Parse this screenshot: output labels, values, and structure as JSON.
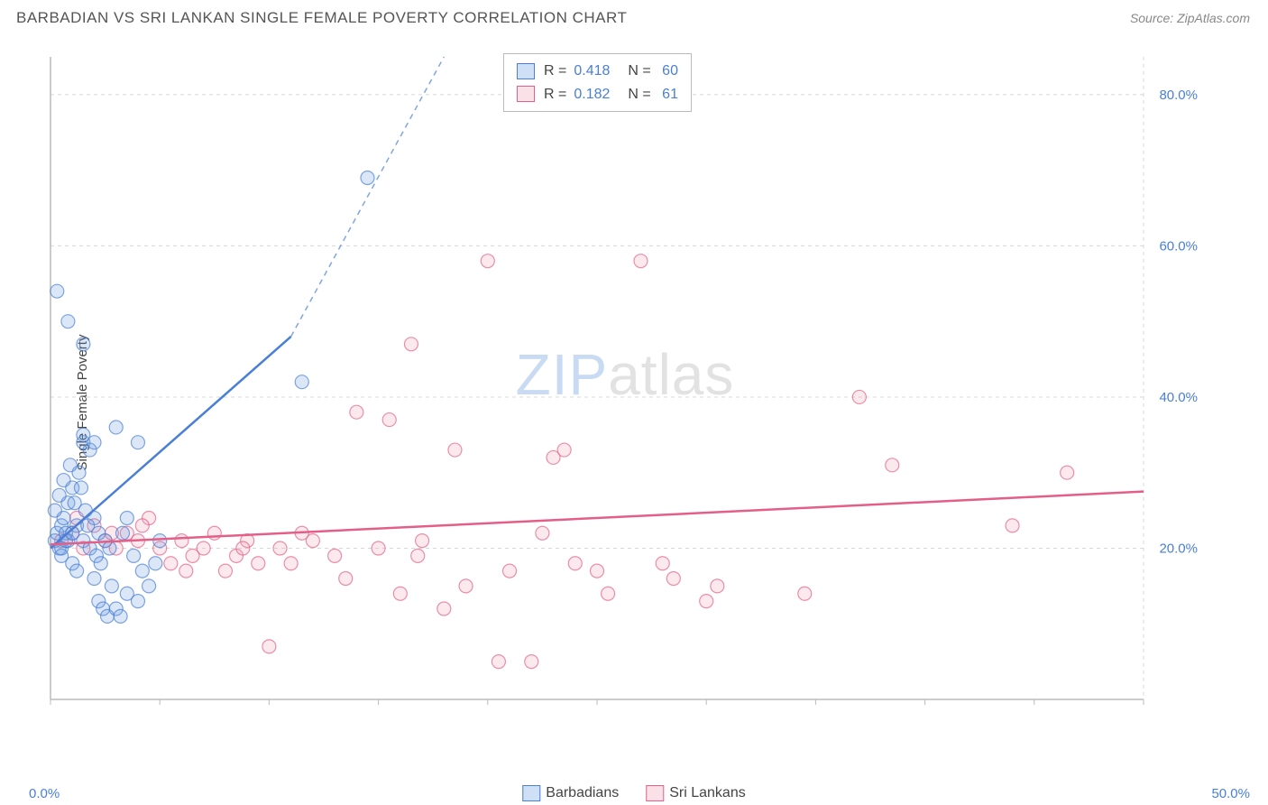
{
  "title": "BARBADIAN VS SRI LANKAN SINGLE FEMALE POVERTY CORRELATION CHART",
  "source": "Source: ZipAtlas.com",
  "ylabel": "Single Female Poverty",
  "watermark_part1": "ZIP",
  "watermark_part2": "atlas",
  "chart": {
    "type": "scatter",
    "background_color": "#ffffff",
    "grid_color": "#d8d8d8",
    "axis_color": "#bbbbbb",
    "tick_label_color": "#4a7fd6",
    "xlim": [
      0,
      50
    ],
    "ylim": [
      0,
      85
    ],
    "x_tick_positions": [
      0,
      5,
      10,
      15,
      20,
      25,
      30,
      35,
      40,
      45,
      50
    ],
    "y_gridlines": [
      20,
      40,
      60,
      80
    ],
    "x_axis_start_label": "0.0%",
    "x_axis_end_label": "50.0%",
    "y_tick_labels": [
      "20.0%",
      "40.0%",
      "60.0%",
      "80.0%"
    ],
    "marker_radius": 7.5,
    "marker_fill_opacity": 0.25,
    "marker_stroke_width": 1.2
  },
  "series": {
    "barbadians": {
      "label": "Barbadians",
      "color": "#6e9ee0",
      "stroke": "#4a7fd6",
      "r_value": "0.418",
      "n_value": "60",
      "trend_line": {
        "x1": 0,
        "y1": 20,
        "x2": 11,
        "y2": 48,
        "dashed_to_x": 18,
        "dashed_to_y": 85,
        "stroke_width": 2.5
      },
      "points": [
        [
          0.2,
          21
        ],
        [
          0.3,
          22
        ],
        [
          0.4,
          20
        ],
        [
          0.5,
          19
        ],
        [
          0.5,
          23
        ],
        [
          0.6,
          24
        ],
        [
          0.7,
          22
        ],
        [
          0.8,
          21
        ],
        [
          0.8,
          26
        ],
        [
          1.0,
          18
        ],
        [
          1.0,
          28
        ],
        [
          1.2,
          17
        ],
        [
          1.2,
          23
        ],
        [
          1.3,
          30
        ],
        [
          1.5,
          21
        ],
        [
          1.5,
          34
        ],
        [
          1.5,
          35
        ],
        [
          1.6,
          25
        ],
        [
          1.8,
          20
        ],
        [
          1.8,
          33
        ],
        [
          2.0,
          16
        ],
        [
          2.0,
          24
        ],
        [
          2.0,
          34
        ],
        [
          2.2,
          13
        ],
        [
          2.2,
          22
        ],
        [
          2.4,
          12
        ],
        [
          2.5,
          21
        ],
        [
          2.6,
          11
        ],
        [
          2.8,
          15
        ],
        [
          3.0,
          12
        ],
        [
          3.0,
          36
        ],
        [
          3.2,
          11
        ],
        [
          3.5,
          14
        ],
        [
          3.5,
          24
        ],
        [
          4.0,
          13
        ],
        [
          4.0,
          34
        ],
        [
          4.5,
          15
        ],
        [
          5.0,
          21
        ],
        [
          0.3,
          54
        ],
        [
          0.8,
          50
        ],
        [
          1.5,
          47
        ],
        [
          0.2,
          25
        ],
        [
          0.4,
          27
        ],
        [
          0.6,
          29
        ],
        [
          0.9,
          31
        ],
        [
          1.1,
          26
        ],
        [
          1.4,
          28
        ],
        [
          1.7,
          23
        ],
        [
          2.1,
          19
        ],
        [
          2.3,
          18
        ],
        [
          2.7,
          20
        ],
        [
          3.3,
          22
        ],
        [
          3.8,
          19
        ],
        [
          4.2,
          17
        ],
        [
          4.8,
          18
        ],
        [
          11.5,
          42
        ],
        [
          14.5,
          69
        ],
        [
          0.5,
          20
        ],
        [
          0.7,
          21
        ],
        [
          1.0,
          22
        ]
      ]
    },
    "srilankans": {
      "label": "Sri Lankans",
      "color": "#f0a6bb",
      "stroke": "#e45f88",
      "r_value": "0.182",
      "n_value": "61",
      "trend_line": {
        "x1": 0,
        "y1": 20.5,
        "x2": 50,
        "y2": 27.5,
        "stroke_width": 2.5
      },
      "points": [
        [
          0.5,
          21
        ],
        [
          1.0,
          22
        ],
        [
          1.5,
          20
        ],
        [
          2.0,
          23
        ],
        [
          2.5,
          21
        ],
        [
          3.0,
          20
        ],
        [
          3.5,
          22
        ],
        [
          4.0,
          21
        ],
        [
          4.5,
          24
        ],
        [
          5.0,
          20
        ],
        [
          5.5,
          18
        ],
        [
          6.0,
          21
        ],
        [
          6.5,
          19
        ],
        [
          7.0,
          20
        ],
        [
          7.5,
          22
        ],
        [
          8.0,
          17
        ],
        [
          8.5,
          19
        ],
        [
          9.0,
          21
        ],
        [
          9.5,
          18
        ],
        [
          10.0,
          7
        ],
        [
          10.5,
          20
        ],
        [
          11.0,
          18
        ],
        [
          12.0,
          21
        ],
        [
          13.0,
          19
        ],
        [
          14.0,
          38
        ],
        [
          15.0,
          20
        ],
        [
          15.5,
          37
        ],
        [
          16.0,
          14
        ],
        [
          16.5,
          47
        ],
        [
          17.0,
          21
        ],
        [
          18.0,
          12
        ],
        [
          18.5,
          33
        ],
        [
          19.0,
          15
        ],
        [
          20.0,
          58
        ],
        [
          20.5,
          5
        ],
        [
          21.0,
          17
        ],
        [
          22.0,
          5
        ],
        [
          22.5,
          22
        ],
        [
          23.0,
          32
        ],
        [
          23.5,
          33
        ],
        [
          24.0,
          18
        ],
        [
          25.0,
          17
        ],
        [
          25.5,
          14
        ],
        [
          27.0,
          58
        ],
        [
          28.0,
          18
        ],
        [
          28.5,
          16
        ],
        [
          30.0,
          13
        ],
        [
          30.5,
          15
        ],
        [
          34.5,
          14
        ],
        [
          37.0,
          40
        ],
        [
          38.5,
          31
        ],
        [
          44.0,
          23
        ],
        [
          46.5,
          30
        ],
        [
          1.2,
          24
        ],
        [
          2.8,
          22
        ],
        [
          4.2,
          23
        ],
        [
          6.2,
          17
        ],
        [
          8.8,
          20
        ],
        [
          11.5,
          22
        ],
        [
          13.5,
          16
        ],
        [
          16.8,
          19
        ]
      ]
    }
  },
  "top_legend": {
    "r_label": "R =",
    "n_label": "N ="
  },
  "legend_items": [
    {
      "key": "barbadians"
    },
    {
      "key": "srilankans"
    }
  ]
}
